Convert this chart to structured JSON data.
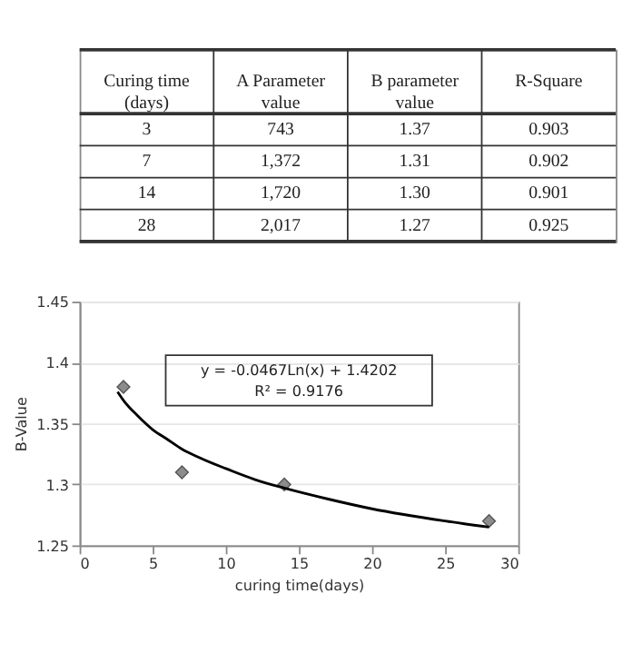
{
  "chart_data": [
    {
      "type": "other",
      "categories": [
        "Curing time (days)",
        "A Parameter value",
        "B parameter value",
        "R-Square"
      ],
      "annotations": [
        "3",
        "743",
        "1.37",
        "0.903",
        "7",
        "1,372",
        "1.31",
        "0.902",
        "14",
        "1,720",
        "1.30",
        "0.901",
        "28",
        "2,017",
        "1.27",
        "0.925"
      ]
    },
    {
      "type": "scatter",
      "xlabel": "curing time(days)",
      "ylabel": "B-Value",
      "xlim": [
        0,
        30
      ],
      "xticks": [
        0,
        5,
        10,
        15,
        20,
        25,
        30
      ],
      "ylim": [
        1.25,
        1.45
      ],
      "yticks": [
        1.25,
        1.3,
        1.35,
        1.4,
        1.45
      ],
      "grid": "y",
      "marker": "diamond",
      "series": [
        {
          "type": "scatter",
          "color": "#8c8c8c",
          "x": [
            3,
            7,
            14,
            28
          ],
          "values": [
            1.38,
            1.31,
            1.3,
            1.27
          ]
        },
        {
          "type": "line",
          "color": "#000000",
          "marker": "none",
          "x": [
            2.6,
            3,
            4,
            5,
            6,
            7,
            8,
            10,
            12,
            14,
            17,
            20,
            25,
            28
          ],
          "values": [
            1.376,
            1.369,
            1.356,
            1.345,
            1.337,
            1.329,
            1.323,
            1.313,
            1.304,
            1.297,
            1.288,
            1.28,
            1.27,
            1.265
          ]
        }
      ],
      "annotations": [
        "y = -0.0467Ln(x) + 1.4202",
        "R² = 0.9176"
      ]
    }
  ]
}
